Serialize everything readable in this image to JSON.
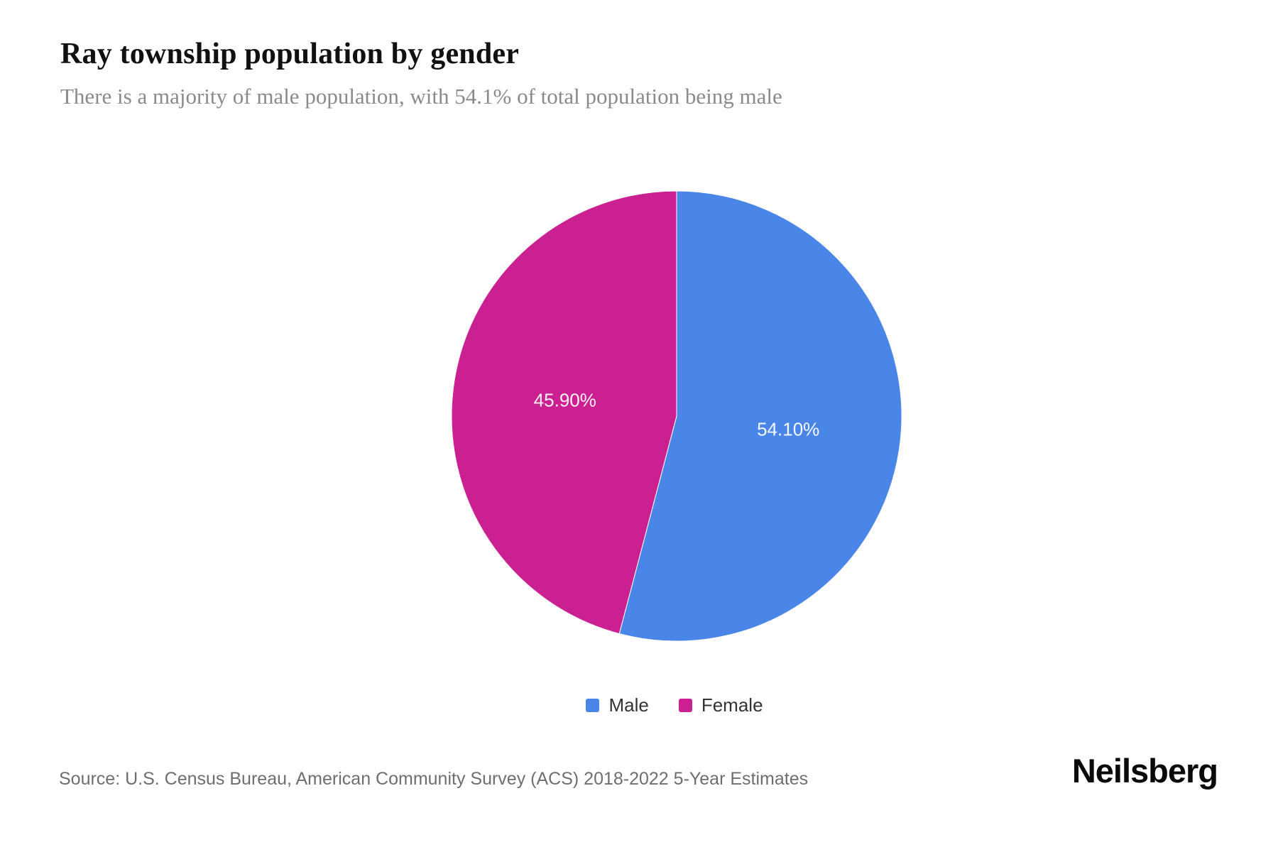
{
  "header": {
    "title": "Ray township population by gender",
    "subtitle": "There is a majority of male population, with 54.1% of total population being male"
  },
  "chart_data": {
    "type": "pie",
    "title": "Ray township population by gender",
    "subtitle": "There is a majority of male population, with 54.1% of total population being male",
    "labels": [
      "Male",
      "Female"
    ],
    "values": [
      54.1,
      45.9
    ],
    "display_labels": [
      "54.10%",
      "45.90%"
    ],
    "colors": [
      "#4a86e8",
      "#cb2092"
    ],
    "start_angle_deg": 0,
    "direction": "clockwise",
    "legend_position": "bottom-center",
    "label_position": "inside"
  },
  "legend": {
    "items": [
      {
        "label": "Male",
        "color": "#4a86e8"
      },
      {
        "label": "Female",
        "color": "#cb2092"
      }
    ]
  },
  "footer": {
    "source": "Source: U.S. Census Bureau, American Community Survey (ACS) 2018-2022 5-Year Estimates",
    "brand": "Neilsberg"
  }
}
